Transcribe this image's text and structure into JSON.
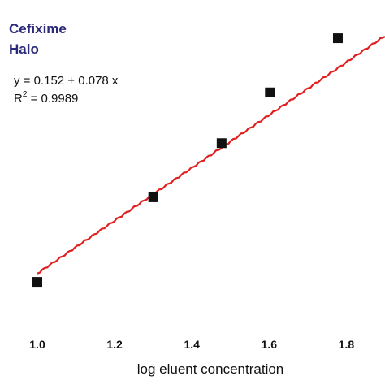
{
  "chart_data": {
    "type": "scatter",
    "title_lines": [
      "Cefixime",
      "Halo"
    ],
    "equation": "y = 0.152 + 0.078 x",
    "r2_prefix": "R",
    "r2_exponent": "2",
    "r2_value": " = 0.9989",
    "xlabel": "log eluent concentration",
    "ylabel": "",
    "xlim": [
      1.0,
      1.9
    ],
    "ylim": [
      0.2196,
      0.2964
    ],
    "xticks": [
      "1.0",
      "1.2",
      "1.4",
      "1.6",
      "1.8"
    ],
    "series": [
      {
        "x": [
          1.0,
          1.3,
          1.477,
          1.602,
          1.778
        ],
        "y": [
          0.2275,
          0.2525,
          0.2685,
          0.2835,
          0.2995
        ]
      }
    ],
    "fit": {
      "intercept": 0.152,
      "slope": 0.078
    },
    "grid": false,
    "colors": {
      "fit_line": "#e02020",
      "marker": "#111111",
      "title": "#2b2a7a"
    }
  }
}
